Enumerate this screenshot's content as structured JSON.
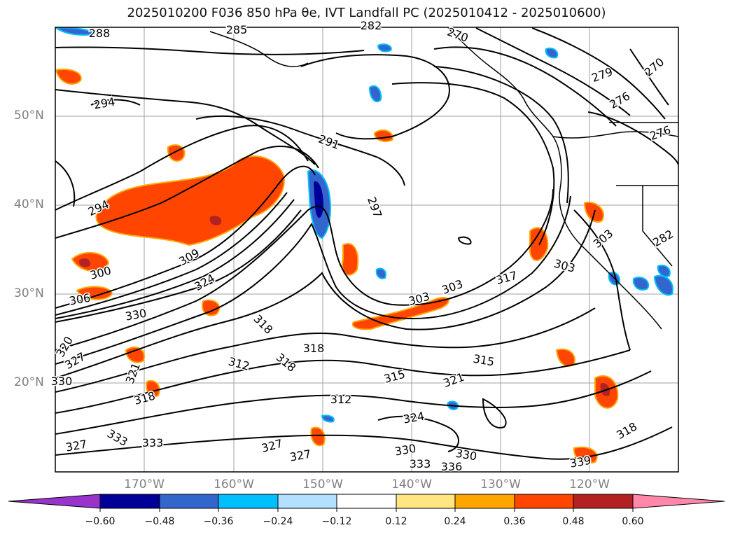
{
  "title": "2025010200 F036 850 hPa θe, IVT Landfall PC (2025010412 - 2025010600)",
  "map": {
    "lat_labels": [
      "50°N",
      "40°N",
      "30°N",
      "20°N"
    ],
    "lon_labels": [
      "170°W",
      "160°W",
      "150°W",
      "140°W",
      "130°W",
      "120°W"
    ],
    "contour_labels": [
      "288",
      "285",
      "282",
      "270",
      "270",
      "279",
      "276",
      "276",
      "294",
      "291",
      "297",
      "294",
      "309",
      "300",
      "324",
      "306",
      "330",
      "303",
      "303",
      "317",
      "303",
      "318",
      "318",
      "320",
      "327",
      "312",
      "318",
      "321",
      "315",
      "315",
      "321",
      "312",
      "330",
      "318",
      "327",
      "324",
      "327",
      "327",
      "333",
      "330",
      "333",
      "330",
      "336",
      "339",
      "333",
      "318",
      "303",
      "282"
    ]
  },
  "colorbar": {
    "ticks": [
      "−0.60",
      "−0.48",
      "−0.36",
      "−0.24",
      "−0.12",
      "0.12",
      "0.24",
      "0.36",
      "0.48",
      "0.60"
    ],
    "colors": [
      "#9933cc",
      "#000099",
      "#3366cc",
      "#00bfff",
      "#b3e0ff",
      "#ffffff",
      "#ffe680",
      "#ffa500",
      "#ff4500",
      "#b22222",
      "#ff88aa"
    ]
  }
}
